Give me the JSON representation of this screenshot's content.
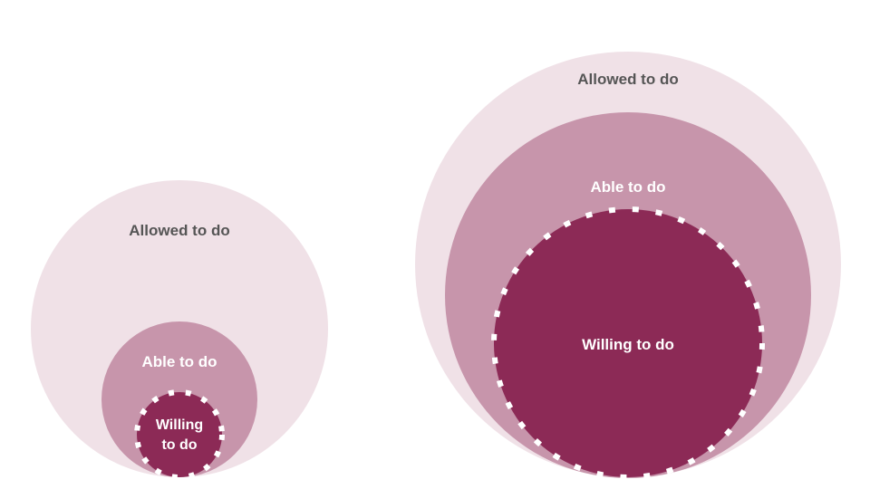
{
  "colors": {
    "allowed": "#f0e1e7",
    "able": "#c795ab",
    "willing": "#8c2a56",
    "allowed_text": "#555555",
    "inner_text": "#ffffff",
    "dash": "#ffffff"
  },
  "left": {
    "allowed_label": "Allowed to do",
    "able_label": "Able to do",
    "willing_line1": "Willing",
    "willing_line2": "to do"
  },
  "right": {
    "allowed_label": "Allowed to do",
    "able_label": "Able to do",
    "willing_label": "Willing to do"
  }
}
